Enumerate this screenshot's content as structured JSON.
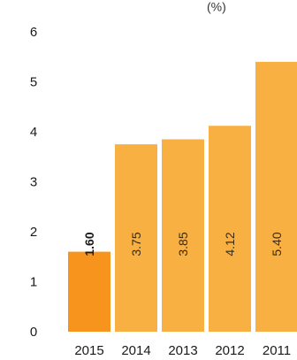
{
  "chart_data": {
    "type": "bar",
    "title_fragment": "(%)",
    "categories": [
      "2015",
      "2014",
      "2013",
      "2012",
      "2011"
    ],
    "values": [
      1.6,
      3.75,
      3.85,
      4.12,
      5.4
    ],
    "value_labels": [
      "1.60",
      "3.75",
      "3.85",
      "4.12",
      "5.40"
    ],
    "highlight_index": 0,
    "ylim": [
      0,
      6
    ],
    "yticks": [
      "0",
      "1",
      "2",
      "3",
      "4",
      "5",
      "6"
    ],
    "grid": false,
    "colors": {
      "highlight": "#F7941D",
      "bar": "#F9B042",
      "text": "#1a1a1a"
    }
  }
}
